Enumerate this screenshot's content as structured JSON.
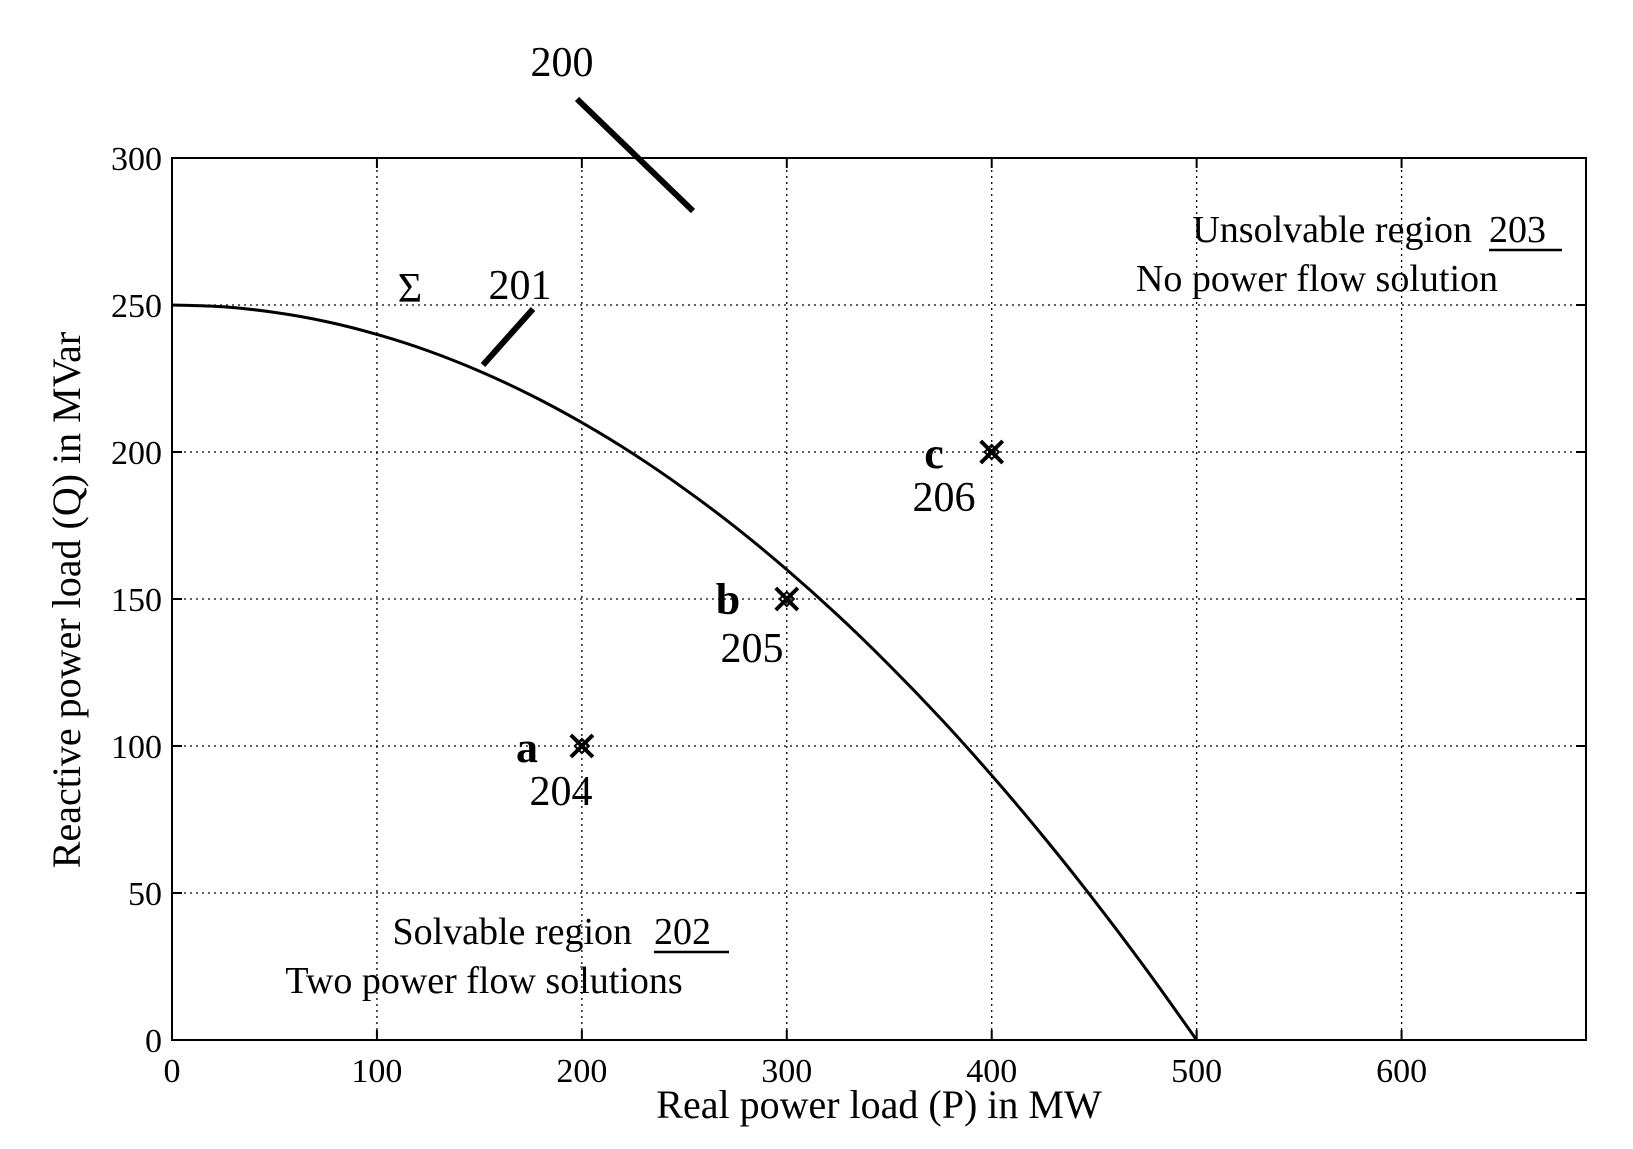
{
  "chart_data": {
    "type": "line",
    "xlabel": "Real power load (P) in MW",
    "ylabel": "Reactive power load (Q) in MVar",
    "xlim": [
      0,
      690
    ],
    "ylim": [
      0,
      300
    ],
    "xticks": [
      0,
      100,
      200,
      300,
      400,
      500,
      600
    ],
    "yticks": [
      0,
      50,
      100,
      150,
      200,
      250,
      300
    ],
    "grid": true,
    "series": [
      {
        "name": "Σ",
        "x": [
          0,
          25,
          50,
          75,
          100,
          125,
          150,
          175,
          200,
          225,
          250,
          275,
          300,
          325,
          350,
          375,
          400,
          425,
          450,
          475,
          500
        ],
        "y": [
          250,
          249.4,
          247.5,
          244.4,
          240,
          234.4,
          227.5,
          219.4,
          210,
          199.4,
          187.5,
          174.4,
          160,
          144.4,
          127.5,
          109.4,
          90,
          69.4,
          47.5,
          24.4,
          0
        ]
      }
    ],
    "points": [
      {
        "label": "a",
        "ref": "204",
        "x": 200,
        "y": 100
      },
      {
        "label": "b",
        "ref": "205",
        "x": 300,
        "y": 150
      },
      {
        "label": "c",
        "ref": "206",
        "x": 400,
        "y": 200
      }
    ],
    "curve_label": "Σ",
    "curve_ref": "201",
    "figure_ref": "200",
    "regions": {
      "unsolvable": {
        "title": "Unsolvable region",
        "ref": "203",
        "subtitle": "No power flow solution"
      },
      "solvable": {
        "title": "Solvable region",
        "ref": "202",
        "subtitle": "Two power flow solutions"
      }
    }
  }
}
